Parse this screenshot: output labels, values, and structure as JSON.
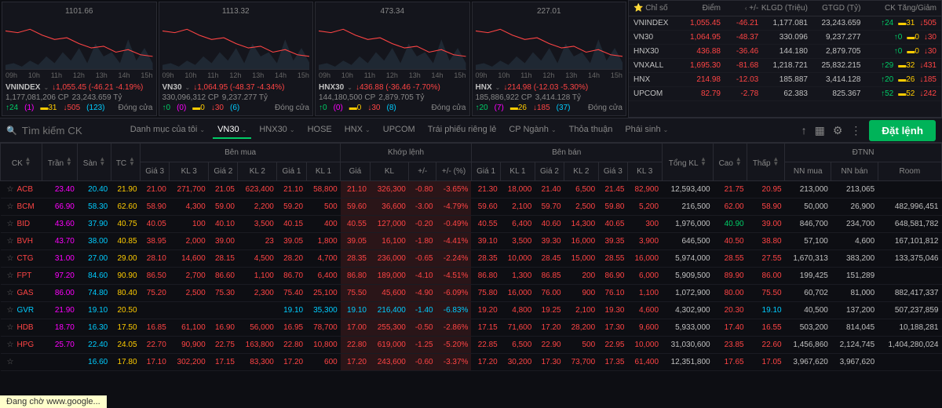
{
  "charts": [
    {
      "name": "VNINDEX",
      "label": "1101.66",
      "price": "1,055.45",
      "change": "(-46.21 -4.19%)",
      "volume": "1,177,081,206 CP",
      "value": "23,243.659 Tỷ",
      "up": "24",
      "up_paren": "(1)",
      "ref": "31",
      "down": "505",
      "down_paren": "(123)",
      "status": "Đóng cửa"
    },
    {
      "name": "VN30",
      "label": "1113.32",
      "price": "1,064.95",
      "change": "(-48.37 -4.34%)",
      "volume": "330,096,312 CP",
      "value": "9,237.277 Tỷ",
      "up": "0",
      "up_paren": "(0)",
      "ref": "0",
      "down": "30",
      "down_paren": "(6)",
      "status": "Đóng cửa"
    },
    {
      "name": "HNX30",
      "label": "473.34",
      "price": "436.88",
      "change": "(-36.46 -7.70%)",
      "volume": "144,180,500 CP",
      "value": "2,879.705 Tỷ",
      "up": "0",
      "up_paren": "(0)",
      "ref": "0",
      "down": "30",
      "down_paren": "(8)",
      "status": "Đóng cửa"
    },
    {
      "name": "HNX",
      "label": "227.01",
      "price": "214.98",
      "change": "(-12.03 -5.30%)",
      "volume": "185,886,922 CP",
      "value": "3,414.128 Tỷ",
      "up": "20",
      "up_paren": "(7)",
      "ref": "26",
      "down": "185",
      "down_paren": "(37)",
      "status": "Đóng cửa"
    }
  ],
  "chart_xaxis": [
    "09h",
    "10h",
    "11h",
    "12h",
    "13h",
    "14h",
    "15h"
  ],
  "chart_line_color": "#ff4444",
  "chart_area_color": "#2a3b4a",
  "chart_bg": "#14151c",
  "index_header": {
    "name": "Chỉ số",
    "point": "Điểm",
    "change": "+/-",
    "vol": "KLGD (Triệu)",
    "val": "GTGD (Tỷ)",
    "adv": "CK Tăng/Giảm"
  },
  "indices": [
    {
      "name": "VNINDEX",
      "point": "1,055.45",
      "change": "-46.21",
      "vol": "1,177.081",
      "val": "23,243.659",
      "up": "24",
      "ref": "31",
      "down": "505"
    },
    {
      "name": "VN30",
      "point": "1,064.95",
      "change": "-48.37",
      "vol": "330.096",
      "val": "9,237.277",
      "up": "0",
      "ref": "0",
      "down": "30"
    },
    {
      "name": "HNX30",
      "point": "436.88",
      "change": "-36.46",
      "vol": "144.180",
      "val": "2,879.705",
      "up": "0",
      "ref": "0",
      "down": "30"
    },
    {
      "name": "VNXALL",
      "point": "1,695.30",
      "change": "-81.68",
      "vol": "1,218.721",
      "val": "25,832.215",
      "up": "29",
      "ref": "32",
      "down": "431"
    },
    {
      "name": "HNX",
      "point": "214.98",
      "change": "-12.03",
      "vol": "185.887",
      "val": "3,414.128",
      "up": "20",
      "ref": "26",
      "down": "185"
    },
    {
      "name": "UPCOM",
      "point": "82.79",
      "change": "-2.78",
      "vol": "62.383",
      "val": "825.367",
      "up": "52",
      "ref": "52",
      "down": "242"
    }
  ],
  "search_placeholder": "Tìm kiếm CK",
  "tabs": [
    "Danh mục của tôi",
    "VN30",
    "HNX30",
    "HOSE",
    "HNX",
    "UPCOM",
    "Trái phiếu riêng lẻ",
    "CP Ngành",
    "Thỏa thuận",
    "Phái sinh"
  ],
  "active_tab": 1,
  "order_button": "Đặt lệnh",
  "table_headers": {
    "ck": "CK",
    "tran": "Trần",
    "san": "Sàn",
    "tc": "TC",
    "benmua": "Bên mua",
    "khoplenh": "Khớp lệnh",
    "benban": "Bên bán",
    "tongkl": "Tổng KL",
    "cao": "Cao",
    "thap": "Thấp",
    "dtnn": "ĐTNN",
    "gia3": "Giá 3",
    "kl3": "KL 3",
    "gia2": "Giá 2",
    "kl2": "KL 2",
    "gia1": "Giá 1",
    "kl1": "KL 1",
    "gia": "Giá",
    "kl": "KL",
    "pm": "+/-",
    "pct": "+/- (%)",
    "nnmua": "NN mua",
    "nnban": "NN bán",
    "room": "Room"
  },
  "rows": [
    {
      "sym": "ACB",
      "tran": "23.40",
      "san": "20.40",
      "tc": "21.90",
      "bg3": "21.00",
      "bk3": "271,700",
      "bg2": "21.05",
      "bk2": "623,400",
      "bg1": "21.10",
      "bk1": "58,800",
      "mg": "21.10",
      "mk": "326,300",
      "pm": "-0.80",
      "pct": "-3.65%",
      "ag1": "21.30",
      "ak1": "18,000",
      "ag2": "21.40",
      "ak2": "6,500",
      "ag3": "21.45",
      "ak3": "82,900",
      "tot": "12,593,400",
      "hi": "21.75",
      "lo": "20.95",
      "nnm": "213,000",
      "nnb": "213,065",
      "room": ""
    },
    {
      "sym": "BCM",
      "tran": "66.90",
      "san": "58.30",
      "tc": "62.60",
      "bg3": "58.90",
      "bk3": "4,300",
      "bg2": "59.00",
      "bk2": "2,200",
      "bg1": "59.20",
      "bk1": "500",
      "mg": "59.60",
      "mk": "36,600",
      "pm": "-3.00",
      "pct": "-4.79%",
      "ag1": "59.60",
      "ak1": "2,100",
      "ag2": "59.70",
      "ak2": "2,500",
      "ag3": "59.80",
      "ak3": "5,200",
      "tot": "216,500",
      "hi": "62.00",
      "lo": "58.90",
      "nnm": "50,000",
      "nnb": "26,900",
      "room": "482,996,451"
    },
    {
      "sym": "BID",
      "tran": "43.60",
      "san": "37.90",
      "tc": "40.75",
      "bg3": "40.05",
      "bk3": "100",
      "bg2": "40.10",
      "bk2": "3,500",
      "bg1": "40.15",
      "bk1": "400",
      "mg": "40.55",
      "mk": "127,000",
      "pm": "-0.20",
      "pct": "-0.49%",
      "ag1": "40.55",
      "ak1": "6,400",
      "ag2": "40.60",
      "ak2": "14,300",
      "ag3": "40.65",
      "ak3": "300",
      "tot": "1,976,000",
      "hi": "40.90",
      "lo": "39.00",
      "nnm": "846,700",
      "nnb": "234,700",
      "room": "648,581,782",
      "hi_class": "up"
    },
    {
      "sym": "BVH",
      "tran": "43.70",
      "san": "38.00",
      "tc": "40.85",
      "bg3": "38.95",
      "bk3": "2,000",
      "bg2": "39.00",
      "bk2": "23",
      "bg1": "39.05",
      "bk1": "1,800",
      "mg": "39.05",
      "mk": "16,100",
      "pm": "-1.80",
      "pct": "-4.41%",
      "ag1": "39.10",
      "ak1": "3,500",
      "ag2": "39.30",
      "ak2": "16,000",
      "ag3": "39.35",
      "ak3": "3,900",
      "tot": "646,500",
      "hi": "40.50",
      "lo": "38.80",
      "nnm": "57,100",
      "nnb": "4,600",
      "room": "167,101,812"
    },
    {
      "sym": "CTG",
      "tran": "31.00",
      "san": "27.00",
      "tc": "29.00",
      "bg3": "28.10",
      "bk3": "14,600",
      "bg2": "28.15",
      "bk2": "4,500",
      "bg1": "28.20",
      "bk1": "4,700",
      "mg": "28.35",
      "mk": "236,000",
      "pm": "-0.65",
      "pct": "-2.24%",
      "ag1": "28.35",
      "ak1": "10,000",
      "ag2": "28.45",
      "ak2": "15,000",
      "ag3": "28.55",
      "ak3": "16,000",
      "tot": "5,974,000",
      "hi": "28.55",
      "lo": "27.55",
      "nnm": "1,670,313",
      "nnb": "383,200",
      "room": "133,375,046"
    },
    {
      "sym": "FPT",
      "tran": "97.20",
      "san": "84.60",
      "tc": "90.90",
      "bg3": "86.50",
      "bk3": "2,700",
      "bg2": "86.60",
      "bk2": "1,100",
      "bg1": "86.70",
      "bk1": "6,400",
      "mg": "86.80",
      "mk": "189,000",
      "pm": "-4.10",
      "pct": "-4.51%",
      "ag1": "86.80",
      "ak1": "1,300",
      "ag2": "86.85",
      "ak2": "200",
      "ag3": "86.90",
      "ak3": "6,000",
      "tot": "5,909,500",
      "hi": "89.90",
      "lo": "86.00",
      "nnm": "199,425",
      "nnb": "151,289",
      "room": ""
    },
    {
      "sym": "GAS",
      "tran": "86.00",
      "san": "74.80",
      "tc": "80.40",
      "bg3": "75.20",
      "bk3": "2,500",
      "bg2": "75.30",
      "bk2": "2,300",
      "bg1": "75.40",
      "bk1": "25,100",
      "mg": "75.50",
      "mk": "45,600",
      "pm": "-4.90",
      "pct": "-6.09%",
      "ag1": "75.80",
      "ak1": "16,000",
      "ag2": "76.00",
      "ak2": "900",
      "ag3": "76.10",
      "ak3": "1,100",
      "tot": "1,072,900",
      "hi": "80.00",
      "lo": "75.50",
      "nnm": "60,702",
      "nnb": "81,000",
      "room": "882,417,337"
    },
    {
      "sym": "GVR",
      "tran": "21.90",
      "san": "19.10",
      "tc": "20.50",
      "bg3": "",
      "bk3": "",
      "bg2": "",
      "bk2": "",
      "bg1": "19.10",
      "bk1": "35,300",
      "mg": "19.10",
      "mk": "216,400",
      "pm": "-1.40",
      "pct": "-6.83%",
      "ag1": "19.20",
      "ak1": "4,800",
      "ag2": "19.25",
      "ak2": "2,100",
      "ag3": "19.30",
      "ak3": "4,600",
      "tot": "4,302,900",
      "hi": "20.30",
      "lo": "19.10",
      "nnm": "40,500",
      "nnb": "137,200",
      "room": "507,237,859",
      "floor": true
    },
    {
      "sym": "HDB",
      "tran": "18.70",
      "san": "16.30",
      "tc": "17.50",
      "bg3": "16.85",
      "bk3": "61,100",
      "bg2": "16.90",
      "bk2": "56,000",
      "bg1": "16.95",
      "bk1": "78,700",
      "mg": "17.00",
      "mk": "255,300",
      "pm": "-0.50",
      "pct": "-2.86%",
      "ag1": "17.15",
      "ak1": "71,600",
      "ag2": "17.20",
      "ak2": "28,200",
      "ag3": "17.30",
      "ak3": "9,600",
      "tot": "5,933,000",
      "hi": "17.40",
      "lo": "16.55",
      "nnm": "503,200",
      "nnb": "814,045",
      "room": "10,188,281"
    },
    {
      "sym": "HPG",
      "tran": "25.70",
      "san": "22.40",
      "tc": "24.05",
      "bg3": "22.70",
      "bk3": "90,900",
      "bg2": "22.75",
      "bk2": "163,800",
      "bg1": "22.80",
      "bk1": "10,800",
      "mg": "22.80",
      "mk": "619,000",
      "pm": "-1.25",
      "pct": "-5.20%",
      "ag1": "22.85",
      "ak1": "6,500",
      "ag2": "22.90",
      "ak2": "500",
      "ag3": "22.95",
      "ak3": "10,000",
      "tot": "31,030,600",
      "hi": "23.85",
      "lo": "22.60",
      "nnm": "1,456,860",
      "nnb": "2,124,745",
      "room": "1,404,280,024"
    },
    {
      "sym": "",
      "tran": "",
      "san": "16.60",
      "tc": "17.80",
      "bg3": "17.10",
      "bk3": "302,200",
      "bg2": "17.15",
      "bk2": "83,300",
      "bg1": "17.20",
      "bk1": "600",
      "mg": "17.20",
      "mk": "243,600",
      "pm": "-0.60",
      "pct": "-3.37%",
      "ag1": "17.20",
      "ak1": "30,200",
      "ag2": "17.30",
      "ak2": "73,700",
      "ag3": "17.35",
      "ak3": "61,400",
      "tot": "12,351,800",
      "hi": "17.65",
      "lo": "17.05",
      "nnm": "3,967,620",
      "nnb": "3,967,620",
      "room": ""
    }
  ],
  "status_bar": "Đang chờ www.google..."
}
